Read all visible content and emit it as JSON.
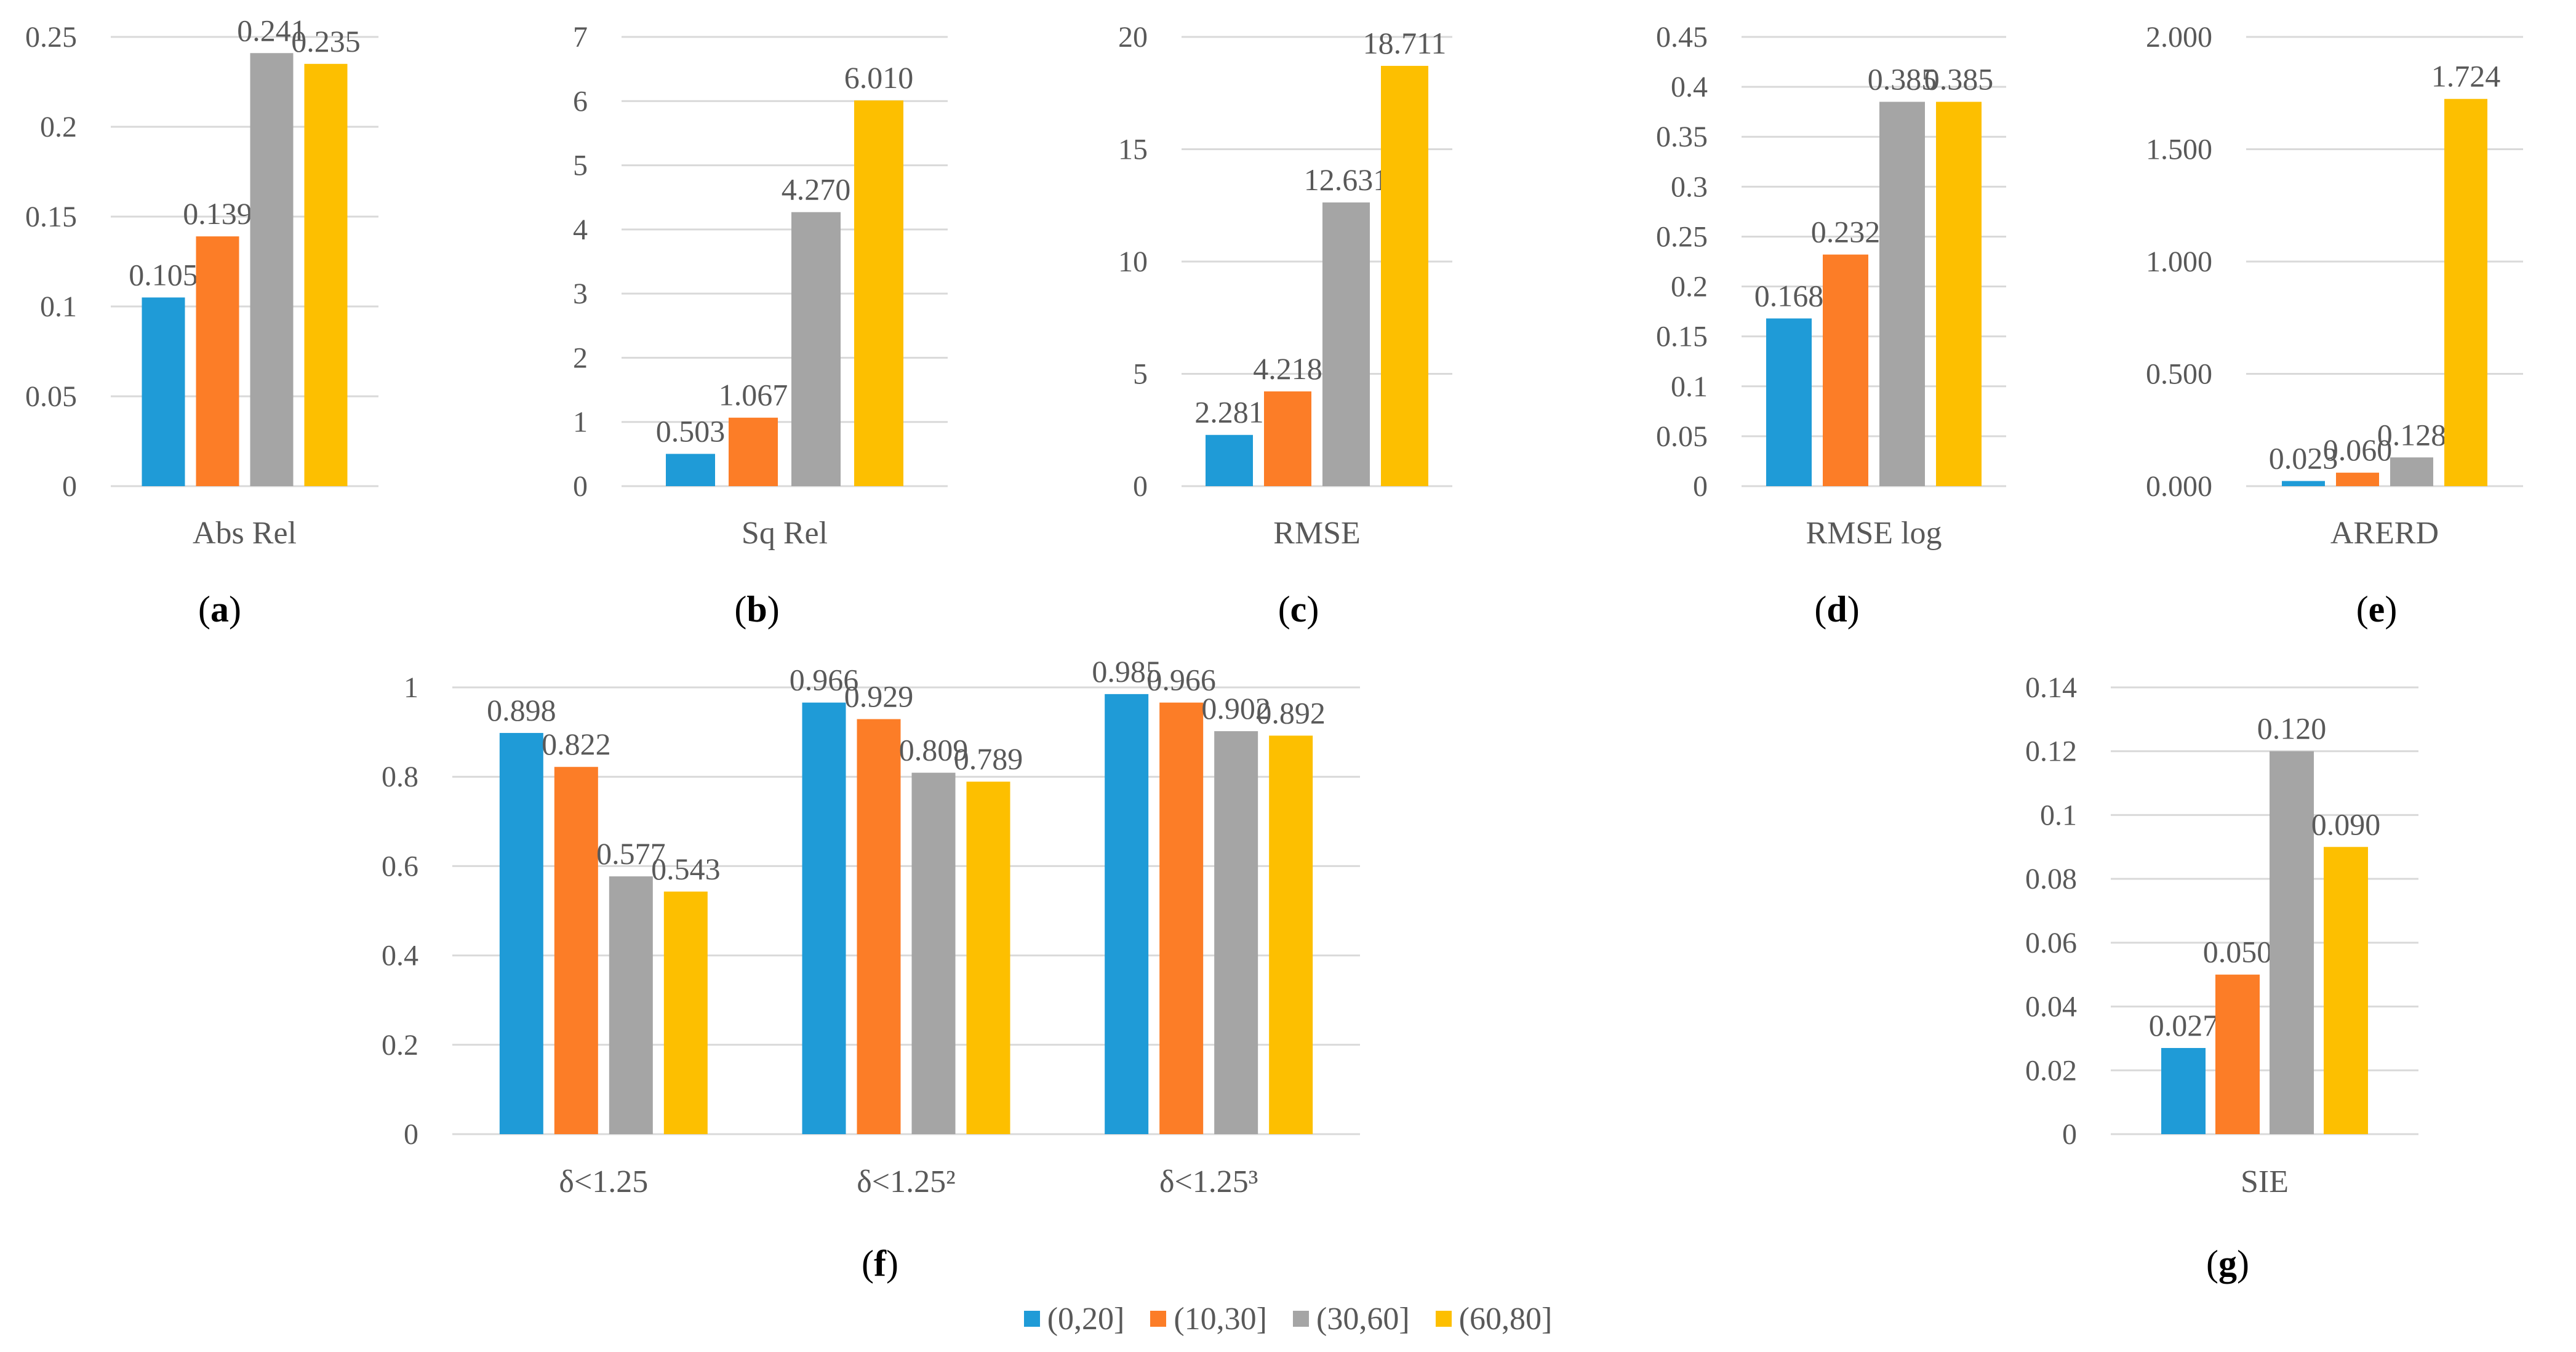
{
  "series_names": [
    "(0,20]",
    "(10,30]",
    "(30,60]",
    "(60,80]"
  ],
  "colors": [
    "#1f9bd7",
    "#fc7d27",
    "#a5a5a5",
    "#fdbf00"
  ],
  "chart_data": [
    {
      "type": "bar",
      "panel": "(a)",
      "categories": [
        "Abs Rel"
      ],
      "ylim": [
        0,
        0.25
      ],
      "yticks": [
        "0",
        "0.05",
        "0.1",
        "0.15",
        "0.2",
        "0.25"
      ],
      "tick_values": [
        0,
        0.05,
        0.1,
        0.15,
        0.2,
        0.25
      ],
      "values": [
        [
          0.105,
          0.139,
          0.241,
          0.235
        ]
      ],
      "labels": [
        [
          "0.105",
          "0.139",
          "0.241",
          "0.235"
        ]
      ]
    },
    {
      "type": "bar",
      "panel": "(b)",
      "categories": [
        "Sq Rel"
      ],
      "ylim": [
        0,
        7
      ],
      "yticks": [
        "0",
        "1",
        "2",
        "3",
        "4",
        "5",
        "6",
        "7"
      ],
      "tick_values": [
        0,
        1,
        2,
        3,
        4,
        5,
        6,
        7
      ],
      "values": [
        [
          0.503,
          1.067,
          4.27,
          6.01
        ]
      ],
      "labels": [
        [
          "0.503",
          "1.067",
          "4.270",
          "6.010"
        ]
      ]
    },
    {
      "type": "bar",
      "panel": "(c)",
      "categories": [
        "RMSE"
      ],
      "ylim": [
        0,
        20
      ],
      "yticks": [
        "0",
        "5",
        "10",
        "15",
        "20"
      ],
      "tick_values": [
        0,
        5,
        10,
        15,
        20
      ],
      "values": [
        [
          2.281,
          4.218,
          12.631,
          18.711
        ]
      ],
      "labels": [
        [
          "2.281",
          "4.218",
          "12.631",
          "18.711"
        ]
      ]
    },
    {
      "type": "bar",
      "panel": "(d)",
      "categories": [
        "RMSE log"
      ],
      "ylim": [
        0,
        0.45
      ],
      "yticks": [
        "0",
        "0.05",
        "0.1",
        "0.15",
        "0.2",
        "0.25",
        "0.3",
        "0.35",
        "0.4",
        "0.45"
      ],
      "tick_values": [
        0,
        0.05,
        0.1,
        0.15,
        0.2,
        0.25,
        0.3,
        0.35,
        0.4,
        0.45
      ],
      "values": [
        [
          0.168,
          0.232,
          0.385,
          0.385
        ]
      ],
      "labels": [
        [
          "0.168",
          "0.232",
          "0.385",
          "0.385"
        ]
      ]
    },
    {
      "type": "bar",
      "panel": "(e)",
      "categories": [
        "ARERD"
      ],
      "ylim": [
        0,
        2.0
      ],
      "yticks": [
        "0.000",
        "0.500",
        "1.000",
        "1.500",
        "2.000"
      ],
      "tick_values": [
        0,
        0.5,
        1.0,
        1.5,
        2.0
      ],
      "values": [
        [
          0.023,
          0.06,
          0.128,
          1.724
        ]
      ],
      "labels": [
        [
          "0.023",
          "0.060",
          "0.128",
          "1.724"
        ]
      ]
    },
    {
      "type": "bar",
      "panel": "(f)",
      "categories": [
        "δ<1.25",
        "δ<1.25²",
        "δ<1.25³"
      ],
      "ylim": [
        0,
        1
      ],
      "yticks": [
        "0",
        "0.2",
        "0.4",
        "0.6",
        "0.8",
        "1"
      ],
      "tick_values": [
        0,
        0.2,
        0.4,
        0.6,
        0.8,
        1.0
      ],
      "values": [
        [
          0.898,
          0.822,
          0.577,
          0.543
        ],
        [
          0.966,
          0.929,
          0.809,
          0.789
        ],
        [
          0.985,
          0.966,
          0.902,
          0.892
        ]
      ],
      "labels": [
        [
          "0.898",
          "0.822",
          "0.577",
          "0.543"
        ],
        [
          "0.966",
          "0.929",
          "0.809",
          "0.789"
        ],
        [
          "0.985",
          "0.966",
          "0.902",
          "0.892"
        ]
      ]
    },
    {
      "type": "bar",
      "panel": "(g)",
      "categories": [
        "SIE"
      ],
      "ylim": [
        0,
        0.14
      ],
      "yticks": [
        "0",
        "0.02",
        "0.04",
        "0.06",
        "0.08",
        "0.1",
        "0.12",
        "0.14"
      ],
      "tick_values": [
        0,
        0.02,
        0.04,
        0.06,
        0.08,
        0.1,
        0.12,
        0.14
      ],
      "values": [
        [
          0.027,
          0.05,
          0.12,
          0.09
        ]
      ],
      "labels": [
        [
          "0.027",
          "0.050",
          "0.120",
          "0.090"
        ]
      ]
    }
  ]
}
